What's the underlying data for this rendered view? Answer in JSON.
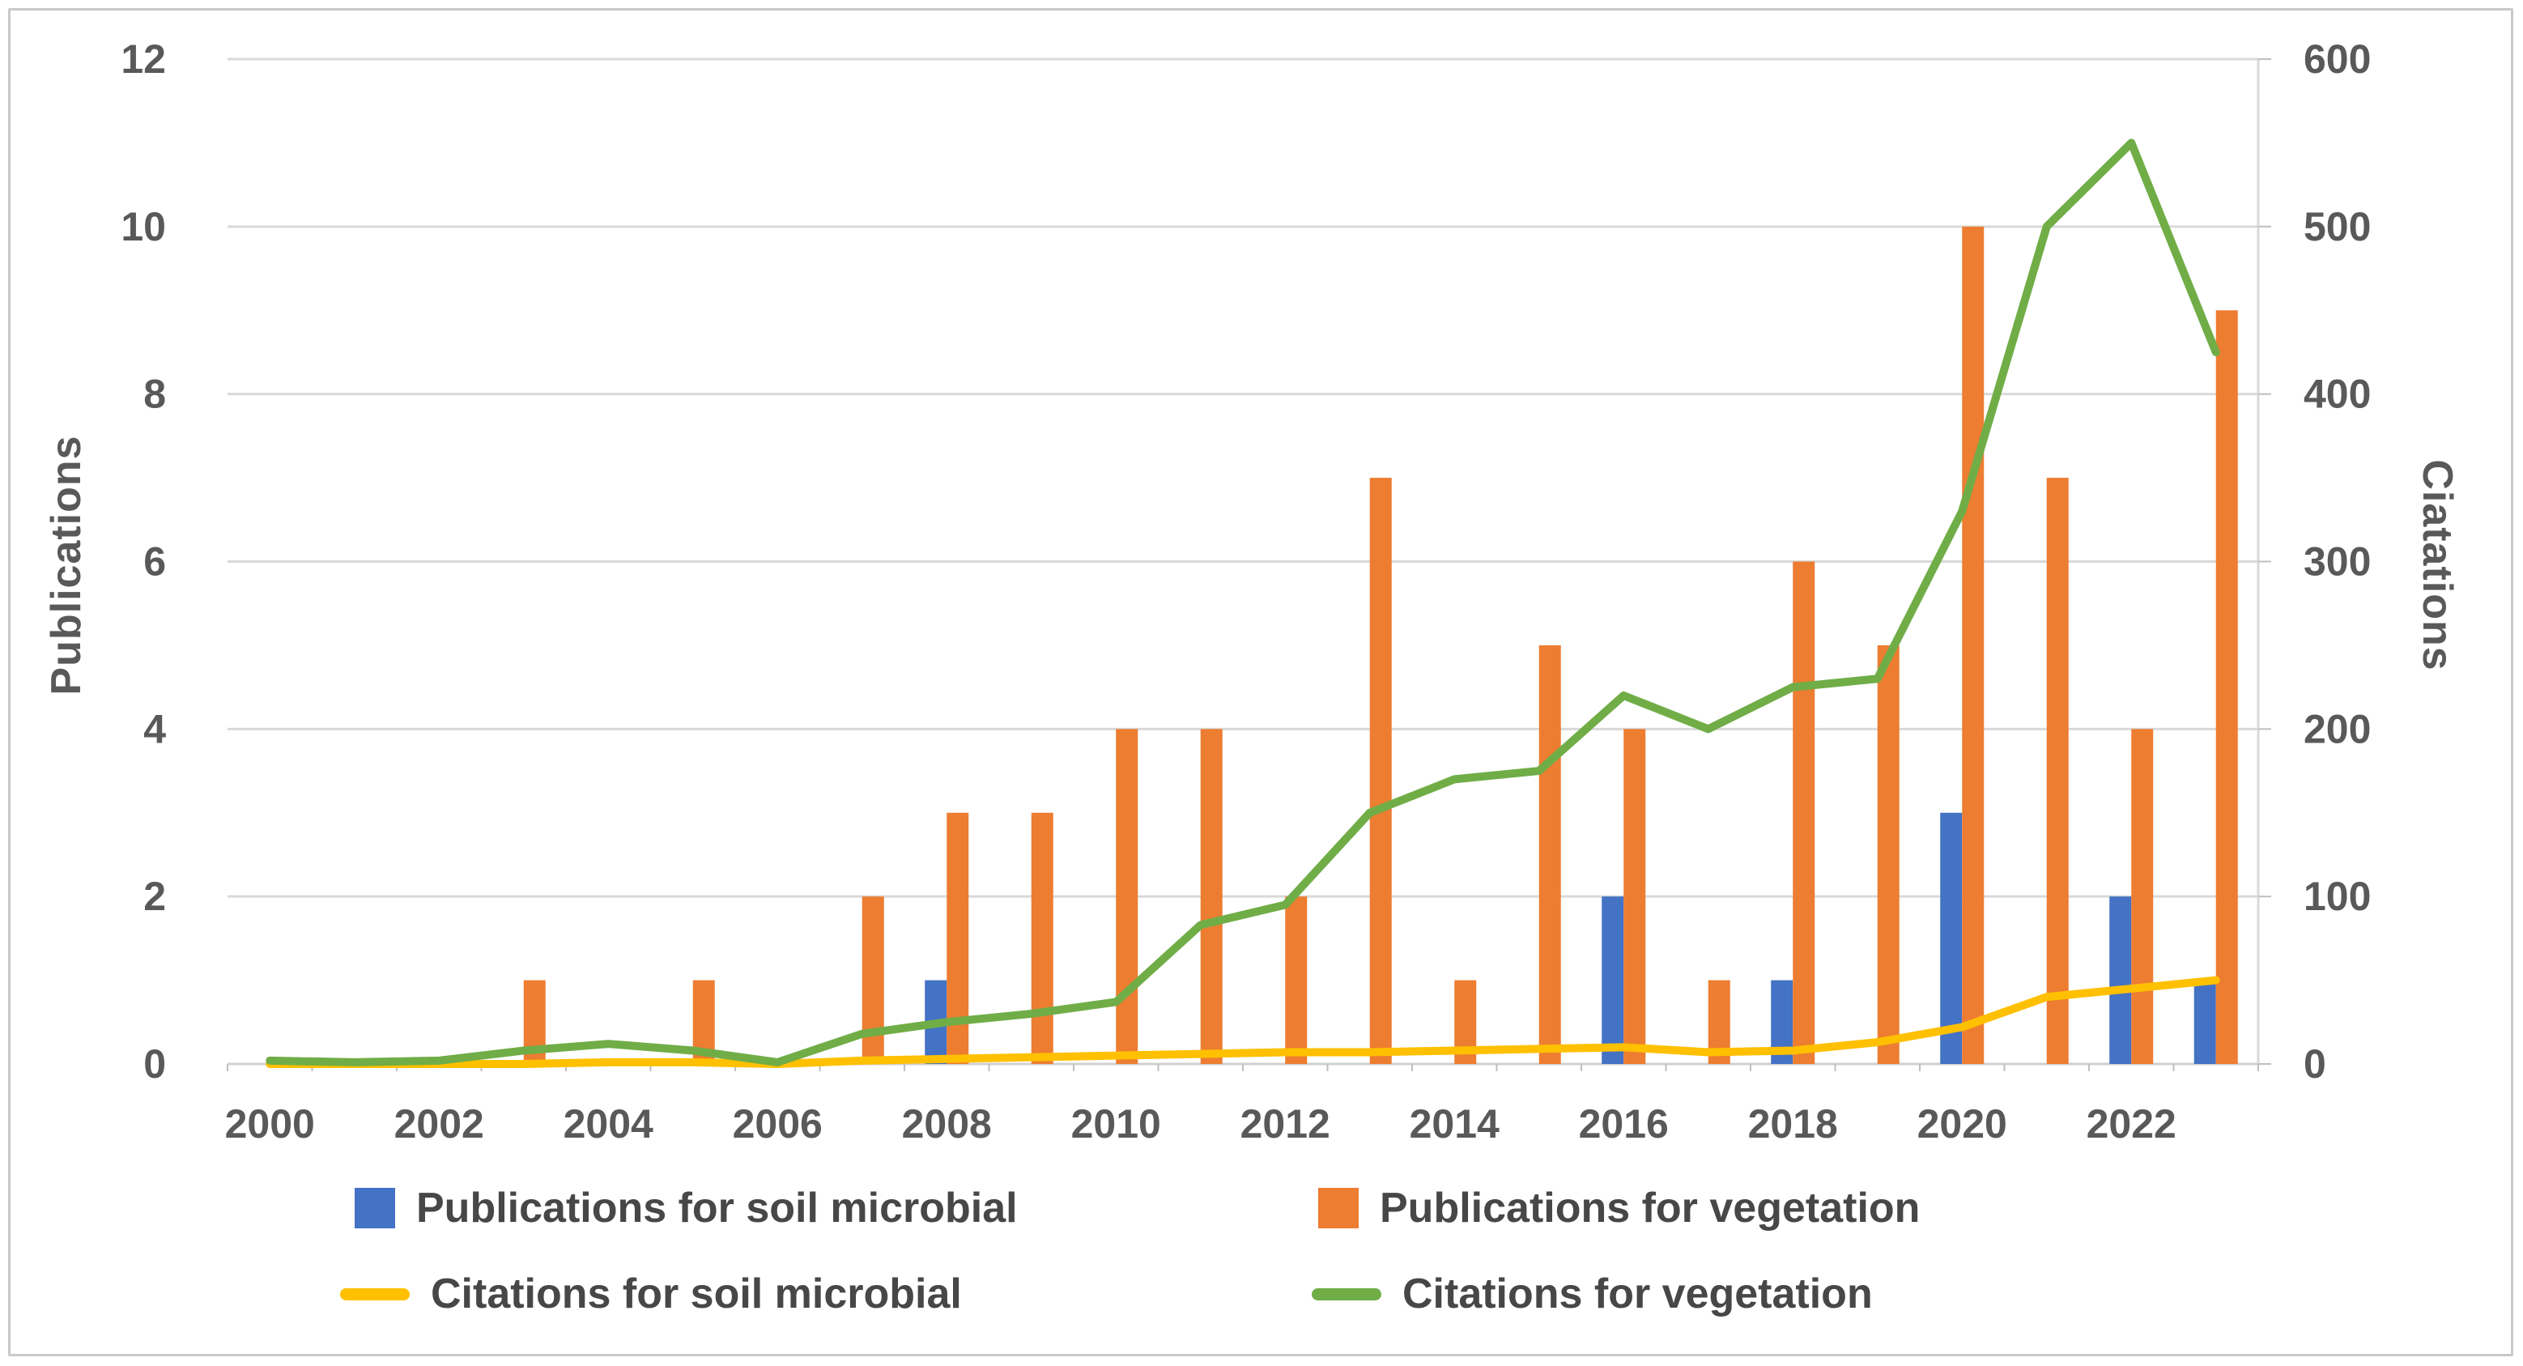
{
  "chart_data": {
    "type": "combo",
    "title": "",
    "x": [
      2000,
      2001,
      2002,
      2003,
      2004,
      2005,
      2006,
      2007,
      2008,
      2009,
      2010,
      2011,
      2012,
      2013,
      2014,
      2015,
      2016,
      2017,
      2018,
      2019,
      2020,
      2021,
      2022,
      2023
    ],
    "series": [
      {
        "name": "Publications for soil microbial",
        "type": "bar",
        "axis": "left",
        "color": "#4472C4",
        "values": [
          0,
          0,
          0,
          0,
          0,
          0,
          0,
          0,
          1,
          0,
          0,
          0,
          0,
          0,
          0,
          0,
          2,
          0,
          1,
          0,
          3,
          0,
          2,
          1
        ]
      },
      {
        "name": "Publications for vegetation",
        "type": "bar",
        "axis": "left",
        "color": "#ED7D31",
        "values": [
          0,
          0,
          0,
          1,
          0,
          1,
          0,
          2,
          3,
          3,
          4,
          4,
          2,
          7,
          1,
          5,
          4,
          1,
          6,
          5,
          10,
          7,
          4,
          9
        ]
      },
      {
        "name": "Citations for soil microbial",
        "type": "line",
        "axis": "right",
        "color": "#FFC000",
        "values": [
          0,
          0,
          0,
          0,
          1,
          1,
          0,
          2,
          3,
          4,
          5,
          6,
          7,
          7,
          8,
          9,
          10,
          7,
          8,
          13,
          22,
          40,
          45,
          50
        ]
      },
      {
        "name": "Citations for vegetation",
        "type": "line",
        "axis": "right",
        "color": "#70AD47",
        "values": [
          2,
          1,
          2,
          8,
          12,
          8,
          1,
          18,
          25,
          30,
          37,
          83,
          95,
          150,
          170,
          175,
          220,
          200,
          225,
          230,
          330,
          500,
          550,
          425
        ]
      }
    ],
    "left_axis": {
      "label": "Publications",
      "min": 0,
      "max": 12,
      "step": 2,
      "tick_labels": [
        "0",
        "2",
        "4",
        "6",
        "8",
        "10",
        "12"
      ]
    },
    "right_axis": {
      "label": "Ciatations",
      "min": 0,
      "max": 600,
      "step": 100,
      "tick_labels": [
        "0",
        "100",
        "200",
        "300",
        "400",
        "500",
        "600"
      ]
    },
    "x_axis": {
      "tick_years": [
        2000,
        2002,
        2004,
        2006,
        2008,
        2010,
        2012,
        2014,
        2016,
        2018,
        2020,
        2022
      ]
    },
    "grid": true,
    "legend_position": "bottom",
    "colors": {
      "gridline": "#D9D9D9",
      "axis_line": "#D0D0D0",
      "tick": "#BFBFBF",
      "tick_text": "#595959",
      "legend_text": "#474747"
    }
  },
  "legend": {
    "items": [
      {
        "label": "Publications for soil microbial",
        "marker": "square",
        "color": "#4472C4"
      },
      {
        "label": "Publications for vegetation",
        "marker": "square",
        "color": "#ED7D31"
      },
      {
        "label": "Citations for soil microbial",
        "marker": "line",
        "color": "#FFC000"
      },
      {
        "label": "Citations for vegetation",
        "marker": "line",
        "color": "#70AD47"
      }
    ]
  }
}
